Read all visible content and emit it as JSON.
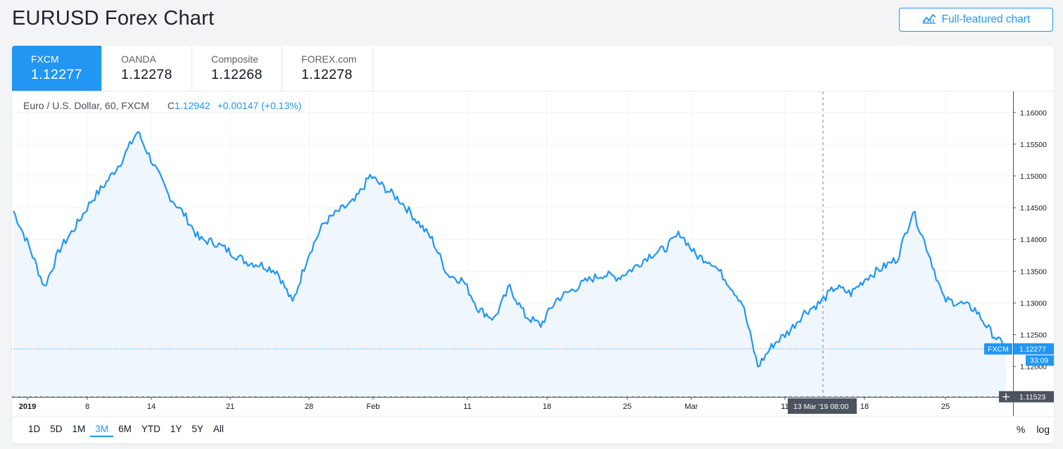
{
  "header": {
    "title": "EURUSD Forex Chart",
    "full_chart_label": "Full-featured chart"
  },
  "tabs": [
    {
      "name": "FXCM",
      "price": "1.12277",
      "active": true
    },
    {
      "name": "OANDA",
      "price": "1.12278",
      "active": false
    },
    {
      "name": "Composite",
      "price": "1.12268",
      "active": false
    },
    {
      "name": "FOREX.com",
      "price": "1.12278",
      "active": false
    }
  ],
  "legend": {
    "symbol": "Euro / U.S. Dollar, 60, FXCM",
    "close_prefix": "C",
    "close": "1.12942",
    "change": "+0.00147 (+0.13%)"
  },
  "price_axis": {
    "ticks": [
      "1.16000",
      "1.15500",
      "1.15000",
      "1.14500",
      "1.14000",
      "1.13500",
      "1.13000",
      "1.12500",
      "1.12000"
    ],
    "last_label": "FXCM",
    "last_price": "1.12277",
    "countdown": "33:09",
    "crosshair_price": "1.11523"
  },
  "time_axis": {
    "ticks": [
      "2019",
      "8",
      "14",
      "21",
      "28",
      "Feb",
      "11",
      "18",
      "25",
      "Mar",
      "11",
      "18",
      "25"
    ],
    "crosshair_date": "13 Mar '19",
    "crosshair_time": "08:00"
  },
  "ranges": [
    "1D",
    "5D",
    "1M",
    "3M",
    "6M",
    "YTD",
    "1Y",
    "5Y",
    "All"
  ],
  "active_range": "3M",
  "scale_options": {
    "percent": "%",
    "log": "log"
  },
  "colors": {
    "accent": "#2196f3",
    "line": "#2196f3",
    "area": "#eef5fd"
  },
  "chart_data": {
    "type": "area",
    "title": "",
    "xlabel": "",
    "ylabel": "",
    "ylim": [
      1.1152,
      1.1633
    ],
    "x": [
      "Jan 2",
      "Jan 3",
      "Jan 3",
      "Jan 4",
      "Jan 7",
      "Jan 8",
      "Jan 9",
      "Jan 10",
      "Jan 10",
      "Jan 11",
      "Jan 14",
      "Jan 15",
      "Jan 16",
      "Jan 17",
      "Jan 18",
      "Jan 21",
      "Jan 22",
      "Jan 23",
      "Jan 24",
      "Jan 25",
      "Jan 28",
      "Jan 29",
      "Jan 30",
      "Jan 31",
      "Feb 1",
      "Feb 4",
      "Feb 5",
      "Feb 6",
      "Feb 7",
      "Feb 8",
      "Feb 11",
      "Feb 12",
      "Feb 13",
      "Feb 14",
      "Feb 15",
      "Feb 18",
      "Feb 19",
      "Feb 20",
      "Feb 21",
      "Feb 22",
      "Feb 25",
      "Feb 26",
      "Feb 27",
      "Feb 28",
      "Mar 1",
      "Mar 4",
      "Mar 5",
      "Mar 6",
      "Mar 7",
      "Mar 8",
      "Mar 11",
      "Mar 12",
      "Mar 13",
      "Mar 14",
      "Mar 15",
      "Mar 18",
      "Mar 19",
      "Mar 20",
      "Mar 21",
      "Mar 22",
      "Mar 25",
      "Mar 26",
      "Mar 27",
      "Mar 28",
      "Mar 29"
    ],
    "series": [
      {
        "values": [
          1.1445,
          1.139,
          1.1325,
          1.1385,
          1.142,
          1.146,
          1.149,
          1.1525,
          1.157,
          1.152,
          1.147,
          1.144,
          1.14,
          1.1395,
          1.138,
          1.1365,
          1.136,
          1.135,
          1.13,
          1.1375,
          1.1425,
          1.1445,
          1.146,
          1.15,
          1.148,
          1.146,
          1.143,
          1.14,
          1.1345,
          1.1335,
          1.129,
          1.1275,
          1.1325,
          1.128,
          1.1265,
          1.1305,
          1.132,
          1.1335,
          1.1345,
          1.134,
          1.1355,
          1.1375,
          1.1385,
          1.141,
          1.1375,
          1.1365,
          1.1335,
          1.13,
          1.12,
          1.1235,
          1.1255,
          1.1285,
          1.13,
          1.1325,
          1.1315,
          1.134,
          1.1355,
          1.137,
          1.1445,
          1.138,
          1.1305,
          1.13,
          1.129,
          1.1255,
          1.1228
        ]
      }
    ]
  }
}
